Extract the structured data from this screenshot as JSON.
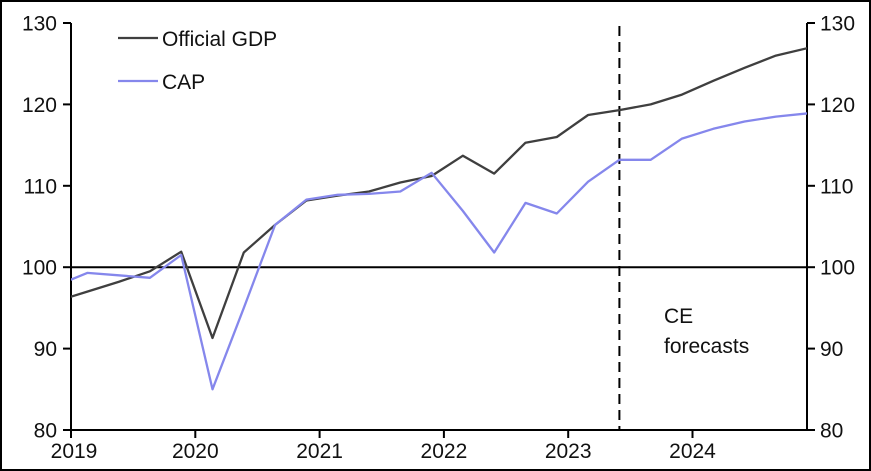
{
  "chart_data": {
    "type": "line",
    "title": "",
    "xlabel": "",
    "ylabel": "",
    "ylim": [
      80,
      130
    ],
    "grid": false,
    "legend_position": "top-left",
    "x_tick_labels": [
      "2019",
      "2020",
      "2021",
      "2022",
      "2023",
      "2024"
    ],
    "y_ticks": [
      80,
      90,
      100,
      110,
      120,
      130
    ],
    "categories": [
      "2018 Q4",
      "2019 Q1",
      "2019 Q2",
      "2019 Q3",
      "2019 Q4",
      "2020 Q1",
      "2020 Q2",
      "2020 Q3",
      "2020 Q4",
      "2021 Q1",
      "2021 Q2",
      "2021 Q3",
      "2021 Q4",
      "2022 Q1",
      "2022 Q2",
      "2022 Q3",
      "2022 Q4",
      "2023 Q1",
      "2023 Q2",
      "2023 Q3",
      "2023 Q4",
      "2024 Q1",
      "2024 Q2",
      "2024 Q3",
      "2024 Q4"
    ],
    "series": [
      {
        "name": "Official GDP",
        "color": "#3f3f3f",
        "values": [
          95.8,
          97.0,
          98.2,
          99.5,
          101.9,
          91.3,
          101.8,
          105.2,
          108.2,
          108.8,
          109.3,
          110.4,
          111.2,
          113.7,
          111.5,
          115.3,
          116.0,
          118.7,
          119.3,
          120.0,
          121.2,
          122.9,
          124.5,
          126.0,
          126.9
        ]
      },
      {
        "name": "CAP",
        "color": "#8587ec",
        "values": [
          97.7,
          99.3,
          99.0,
          98.7,
          101.5,
          85.0,
          95.0,
          105.2,
          108.3,
          108.9,
          109.0,
          109.3,
          111.6,
          106.9,
          101.8,
          107.9,
          106.6,
          110.5,
          113.2,
          113.2,
          115.8,
          117.0,
          117.9,
          118.5,
          118.9
        ]
      }
    ],
    "reference_line_y": 100,
    "forecast_divider": {
      "at_category": "2023 Q2",
      "index": 18,
      "style": "dashed"
    },
    "annotation": {
      "lines": [
        "CE",
        "forecasts"
      ]
    }
  },
  "colors": {
    "axis": "#000000",
    "background": "#ffffff",
    "gdp_line": "#3f3f3f",
    "cap_line": "#8587ec"
  }
}
